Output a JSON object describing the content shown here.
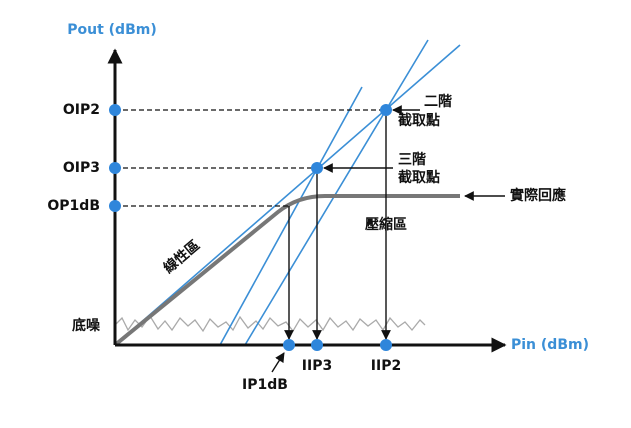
{
  "axes": {
    "y_label": "Pout (dBm)",
    "x_label": "Pin (dBm)"
  },
  "y_markers": [
    "OIP2",
    "OIP3",
    "OP1dB",
    "底噪"
  ],
  "x_markers": [
    "IP1dB",
    "IIP3",
    "IIP2"
  ],
  "annotations": {
    "second_order_intercept": [
      "二階",
      "截取點"
    ],
    "third_order_intercept": [
      "三階",
      "截取點"
    ],
    "actual_response": "實際回應",
    "compression_region": "壓縮區",
    "linear_region": "線性區"
  }
}
